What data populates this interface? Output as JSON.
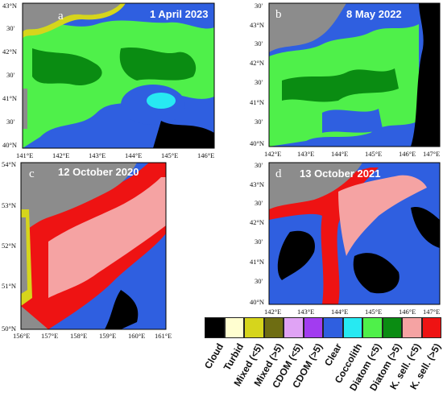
{
  "panels": [
    {
      "id": "a",
      "letter": "a",
      "date": "1 April 2023",
      "lon_labels": [
        "141°E",
        "142°E",
        "143°E",
        "144°E",
        "145°E",
        "146°E"
      ],
      "lat_labels": [
        "43°N",
        "30'",
        "42°N",
        "30'",
        "41°N",
        "30'",
        "40°N"
      ]
    },
    {
      "id": "b",
      "letter": "b",
      "date": "8 May 2022",
      "lon_labels": [
        "142°E",
        "143°E",
        "144°E",
        "145°E",
        "146°E",
        "147°E"
      ],
      "lat_labels": [
        "30'",
        "43°N",
        "30'",
        "42°N",
        "30'",
        "41°N",
        "30'",
        "40°N"
      ]
    },
    {
      "id": "c",
      "letter": "c",
      "date": "12 October 2020",
      "lon_labels": [
        "156°E",
        "157°E",
        "158°E",
        "159°E",
        "160°E",
        "161°E"
      ],
      "lat_labels": [
        "54°N",
        "53°N",
        "52°N",
        "51°N",
        "50°N"
      ]
    },
    {
      "id": "d",
      "letter": "d",
      "date": "13 October 2021",
      "lon_labels": [
        "142°E",
        "143°E",
        "144°E",
        "145°E",
        "146°E",
        "147°E"
      ],
      "lat_labels": [
        "30'",
        "43°N",
        "30'",
        "42°N",
        "30'",
        "41°N",
        "30'",
        "40°N"
      ]
    }
  ],
  "legend": [
    {
      "label": "Cloud",
      "color": "#000000"
    },
    {
      "label": "Turbid",
      "color": "#fffed0"
    },
    {
      "label": "Mixed (<5)",
      "color": "#d6d51c"
    },
    {
      "label": "Mixed (>5)",
      "color": "#6e6d12"
    },
    {
      "label": "CDOM (<5)",
      "color": "#e0a3f5"
    },
    {
      "label": "CDOM (>5)",
      "color": "#a23cf0"
    },
    {
      "label": "Clear",
      "color": "#2f5fe0"
    },
    {
      "label": "Coccolith",
      "color": "#27e9f2"
    },
    {
      "label": "Diatom (<5)",
      "color": "#4ff04a"
    },
    {
      "label": "Diatom (>5)",
      "color": "#0a8c12"
    },
    {
      "label": "K. sell. (<5)",
      "color": "#f5a3a3"
    },
    {
      "label": "K. sell. (>5)",
      "color": "#ee1313"
    }
  ]
}
